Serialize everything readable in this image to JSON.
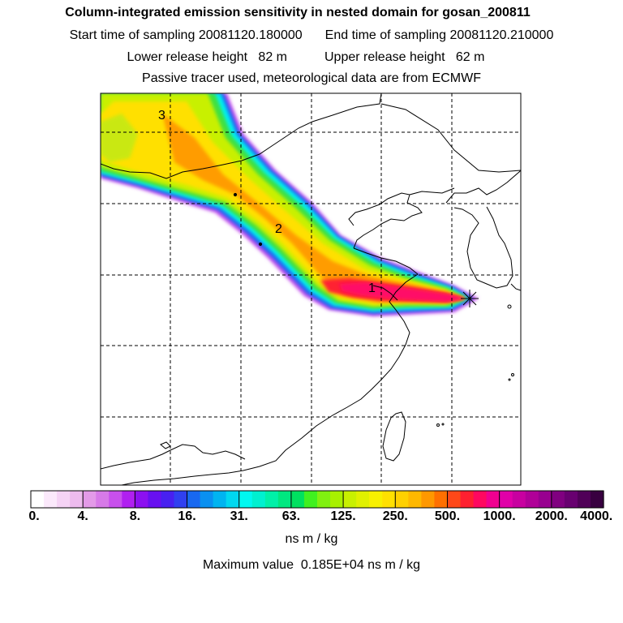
{
  "title": "Column-integrated emission sensitivity in nested domain for gosan_200811",
  "sampling": {
    "start_label": "Start time of sampling",
    "start_value": "20081120.180000",
    "end_label": "End time of sampling",
    "end_value": "20081120.210000"
  },
  "release": {
    "lower_label": "Lower release height",
    "lower_value": "82 m",
    "upper_label": "Upper release height",
    "upper_value": "62 m"
  },
  "note": "Passive tracer used, meteorological data are from ECMWF",
  "map": {
    "labels": [
      "1",
      "2",
      "3"
    ],
    "receptor_marker": "star-cross"
  },
  "colorbar": {
    "tick_labels": [
      "0.",
      "4.",
      "8.",
      "16.",
      "31.",
      "63.",
      "125.",
      "250.",
      "500.",
      "1000.",
      "2000.",
      "4000."
    ],
    "colors": [
      "#ffffff",
      "#fbe9fb",
      "#f5d3f5",
      "#edbbee",
      "#e39ae8",
      "#d77ae8",
      "#c850ec",
      "#b020f0",
      "#8c10f0",
      "#6810f0",
      "#4820f0",
      "#3040f0",
      "#1868f0",
      "#0a90f0",
      "#00b4f0",
      "#00d8f0",
      "#00f8f0",
      "#00f0d0",
      "#00f0a8",
      "#00e880",
      "#00e060",
      "#40f020",
      "#80f010",
      "#a8f000",
      "#c8f000",
      "#e0f000",
      "#f8f000",
      "#ffe000",
      "#ffd000",
      "#ffb800",
      "#ff9800",
      "#ff7000",
      "#ff4818",
      "#ff2030",
      "#ff0860",
      "#f00090",
      "#e000a8",
      "#c800a0",
      "#b00098",
      "#980090",
      "#800080",
      "#680070",
      "#500058",
      "#380040"
    ],
    "units": "ns m / kg",
    "max_label": "Maximum value",
    "max_value": "0.185E+04 ns m / kg"
  },
  "colors": {
    "plume_low": "#c850ec",
    "plume_mid": "#00f8f0",
    "plume_high": "#ffe000",
    "plume_peak": "#ff0860",
    "coast": "#000000",
    "grid": "#000000"
  }
}
